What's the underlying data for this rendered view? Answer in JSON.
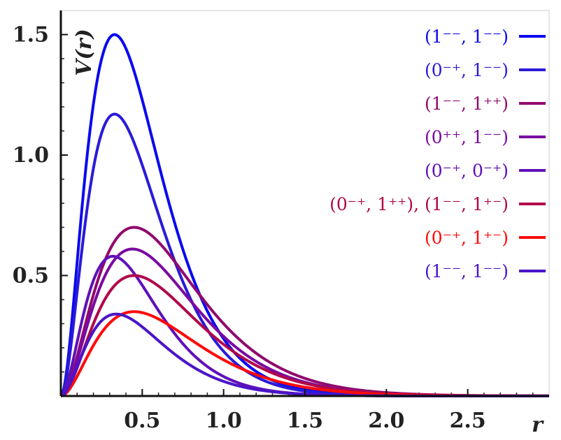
{
  "chart_data": {
    "type": "line",
    "title": "",
    "xlabel": "r",
    "ylabel": "V(r)",
    "xlim": [
      0,
      3.0
    ],
    "ylim": [
      0,
      1.6
    ],
    "x_ticks": [
      0.5,
      1.0,
      1.5,
      2.0,
      2.5
    ],
    "x_tick_labels": [
      "0.5",
      "1.0",
      "1.5",
      "2.0",
      "2.5"
    ],
    "y_ticks": [
      0.5,
      1.0,
      1.5
    ],
    "y_tick_labels": [
      "0.5",
      "1.0",
      "1.5"
    ],
    "grid": false,
    "legend_position": "top-right",
    "series": [
      {
        "name": "(1⁻⁻, 1⁻⁻)",
        "color": "#0a0af0",
        "peak_x": 0.33,
        "peak_y": 1.5
      },
      {
        "name": "(0⁻⁺, 1⁻⁻)",
        "color": "#2a1ad8",
        "peak_x": 0.33,
        "peak_y": 1.17
      },
      {
        "name": "(1⁻⁻, 1⁺⁺)",
        "color": "#900a6e",
        "peak_x": 0.45,
        "peak_y": 0.7
      },
      {
        "name": "(0⁺⁺, 1⁻⁻)",
        "color": "#7a0aa0",
        "peak_x": 0.44,
        "peak_y": 0.61
      },
      {
        "name": "(0⁻⁺, 0⁻⁺)",
        "color": "#6010b8",
        "peak_x": 0.32,
        "peak_y": 0.58
      },
      {
        "name": "(0⁻⁺, 1⁺⁺), (1⁻⁻, 1⁺⁻)",
        "color": "#b0084a",
        "peak_x": 0.45,
        "peak_y": 0.5
      },
      {
        "name": "(0⁻⁺, 1⁺⁻)",
        "color": "#ff0a0a",
        "peak_x": 0.45,
        "peak_y": 0.35
      },
      {
        "name": "(1⁻⁻, 1⁻⁻)",
        "color": "#4a14c8",
        "peak_x": 0.34,
        "peak_y": 0.34
      }
    ]
  }
}
